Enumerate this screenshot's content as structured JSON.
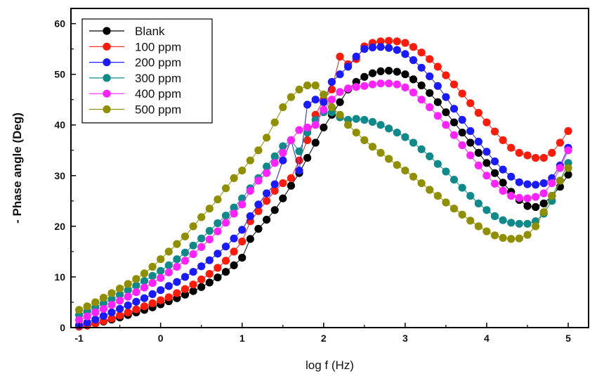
{
  "chart_data": {
    "type": "scatter",
    "xlabel": "log f (Hz)",
    "ylabel": "- Phase angle (Deg)",
    "xlim": [
      -1.1,
      5.25
    ],
    "ylim": [
      0,
      63
    ],
    "x_ticks": [
      "-1",
      "0",
      "1",
      "2",
      "3",
      "4",
      "5"
    ],
    "y_ticks": [
      "0",
      "10",
      "20",
      "30",
      "40",
      "50",
      "60"
    ],
    "legend_position": "top-left",
    "grid": false,
    "series": [
      {
        "name": "Blank",
        "color": "#000000",
        "x": [
          -1.0,
          -0.9,
          -0.8,
          -0.7,
          -0.6,
          -0.5,
          -0.4,
          -0.3,
          -0.2,
          -0.1,
          0.0,
          0.1,
          0.2,
          0.3,
          0.4,
          0.5,
          0.6,
          0.7,
          0.8,
          0.9,
          1.0,
          1.1,
          1.2,
          1.3,
          1.4,
          1.5,
          1.6,
          1.7,
          1.8,
          1.9,
          2.0,
          2.1,
          2.2,
          2.3,
          2.4,
          2.5,
          2.6,
          2.7,
          2.8,
          2.9,
          3.0,
          3.1,
          3.2,
          3.3,
          3.4,
          3.5,
          3.6,
          3.7,
          3.8,
          3.9,
          4.0,
          4.1,
          4.2,
          4.3,
          4.4,
          4.5,
          4.6,
          4.7,
          4.8,
          4.9,
          5.0
        ],
        "y": [
          0.2,
          0.4,
          0.8,
          1.2,
          1.6,
          2.0,
          2.5,
          3.0,
          3.5,
          4.0,
          4.6,
          5.2,
          5.8,
          6.5,
          7.2,
          8.0,
          8.9,
          9.9,
          11.0,
          12.3,
          13.8,
          17.5,
          19.5,
          21.3,
          23.2,
          25.5,
          28.0,
          30.5,
          33.5,
          36.5,
          39.5,
          42.0,
          44.5,
          47.0,
          48.5,
          49.5,
          50.2,
          50.6,
          50.7,
          50.5,
          50.0,
          49.0,
          47.8,
          46.3,
          44.5,
          42.5,
          40.5,
          38.5,
          36.5,
          34.5,
          32.5,
          30.5,
          28.6,
          26.8,
          25.2,
          24.0,
          23.8,
          24.5,
          26.0,
          27.8,
          30.2
        ]
      },
      {
        "name": "100 ppm",
        "color": "#ff1a0a",
        "x": [
          -1.0,
          -0.9,
          -0.8,
          -0.7,
          -0.6,
          -0.5,
          -0.4,
          -0.3,
          -0.2,
          -0.1,
          0.0,
          0.1,
          0.2,
          0.3,
          0.4,
          0.5,
          0.6,
          0.7,
          0.8,
          0.9,
          1.0,
          1.1,
          1.2,
          1.3,
          1.4,
          1.5,
          1.6,
          1.7,
          1.8,
          1.9,
          2.0,
          2.1,
          2.2,
          2.3,
          2.4,
          2.5,
          2.6,
          2.7,
          2.8,
          2.9,
          3.0,
          3.1,
          3.2,
          3.3,
          3.4,
          3.5,
          3.6,
          3.7,
          3.8,
          3.9,
          4.0,
          4.1,
          4.2,
          4.3,
          4.4,
          4.5,
          4.6,
          4.7,
          4.8,
          4.9,
          5.0
        ],
        "y": [
          0.2,
          0.4,
          0.8,
          1.3,
          1.8,
          2.4,
          3.0,
          3.6,
          4.2,
          4.8,
          5.4,
          6.0,
          6.8,
          7.6,
          8.5,
          9.5,
          10.6,
          11.8,
          13.2,
          15.0,
          17.0,
          21.0,
          23.0,
          25.0,
          27.0,
          28.5,
          29.5,
          33.0,
          37.0,
          42.0,
          45.0,
          47.0,
          53.5,
          52.0,
          53.0,
          55.5,
          56.2,
          56.5,
          56.6,
          56.5,
          56.2,
          55.4,
          54.3,
          53.0,
          51.5,
          49.8,
          48.0,
          46.2,
          44.3,
          42.4,
          40.5,
          38.7,
          37.0,
          35.5,
          34.5,
          34.0,
          33.5,
          33.5,
          34.5,
          36.5,
          38.8
        ]
      },
      {
        "name": "200 ppm",
        "color": "#1a1aff",
        "x": [
          -1.0,
          -0.9,
          -0.8,
          -0.7,
          -0.6,
          -0.5,
          -0.4,
          -0.3,
          -0.2,
          -0.1,
          0.0,
          0.1,
          0.2,
          0.3,
          0.4,
          0.5,
          0.6,
          0.7,
          0.8,
          0.9,
          1.0,
          1.1,
          1.2,
          1.3,
          1.4,
          1.5,
          1.6,
          1.7,
          1.8,
          1.9,
          2.0,
          2.1,
          2.2,
          2.3,
          2.4,
          2.5,
          2.6,
          2.7,
          2.8,
          2.9,
          3.0,
          3.1,
          3.2,
          3.3,
          3.4,
          3.5,
          3.6,
          3.7,
          3.8,
          3.9,
          4.0,
          4.1,
          4.2,
          4.3,
          4.4,
          4.5,
          4.6,
          4.7,
          4.8,
          4.9,
          5.0
        ],
        "y": [
          0.5,
          1.0,
          1.6,
          2.3,
          3.0,
          3.7,
          4.4,
          5.1,
          5.8,
          6.6,
          7.4,
          8.2,
          9.0,
          10.0,
          11.0,
          12.1,
          13.3,
          14.6,
          16.0,
          17.6,
          19.3,
          22.0,
          24.3,
          26.5,
          28.3,
          33.0,
          37.0,
          31.0,
          44.0,
          45.0,
          44.5,
          48.5,
          50.0,
          51.5,
          53.5,
          55.0,
          55.3,
          55.4,
          55.2,
          54.8,
          54.0,
          52.8,
          51.3,
          49.6,
          47.7,
          45.5,
          43.2,
          41.0,
          38.8,
          36.7,
          34.7,
          32.8,
          31.2,
          29.8,
          28.7,
          28.3,
          28.2,
          28.5,
          29.5,
          32.0,
          35.5
        ]
      },
      {
        "name": "300 ppm",
        "color": "#0e8a8a",
        "x": [
          -1.0,
          -0.9,
          -0.8,
          -0.7,
          -0.6,
          -0.5,
          -0.4,
          -0.3,
          -0.2,
          -0.1,
          0.0,
          0.1,
          0.2,
          0.3,
          0.4,
          0.5,
          0.6,
          0.7,
          0.8,
          0.9,
          1.0,
          1.1,
          1.2,
          1.3,
          1.4,
          1.5,
          1.6,
          1.7,
          1.8,
          1.9,
          2.0,
          2.1,
          2.2,
          2.3,
          2.4,
          2.5,
          2.6,
          2.7,
          2.8,
          2.9,
          3.0,
          3.1,
          3.2,
          3.3,
          3.4,
          3.5,
          3.6,
          3.7,
          3.8,
          3.9,
          4.0,
          4.1,
          4.2,
          4.3,
          4.4,
          4.5,
          4.6,
          4.7,
          4.8,
          4.9,
          5.0
        ],
        "y": [
          2.5,
          3.2,
          4.0,
          4.8,
          5.6,
          6.5,
          7.4,
          8.3,
          9.2,
          10.2,
          11.2,
          12.3,
          13.5,
          14.8,
          16.2,
          17.6,
          19.1,
          20.6,
          22.1,
          23.7,
          25.5,
          27.5,
          29.5,
          31.8,
          33.8,
          35.8,
          37.0,
          34.8,
          38.5,
          41.0,
          42.5,
          42.5,
          41.5,
          41.0,
          41.2,
          41.0,
          40.6,
          40.0,
          39.3,
          38.5,
          37.6,
          36.5,
          35.2,
          33.8,
          32.3,
          30.8,
          29.2,
          27.6,
          26.0,
          24.5,
          23.2,
          22.0,
          21.2,
          20.7,
          20.5,
          20.5,
          21.0,
          22.5,
          25.0,
          29.0,
          32.5
        ]
      },
      {
        "name": "400 ppm",
        "color": "#ff22ff",
        "x": [
          -1.0,
          -0.9,
          -0.8,
          -0.7,
          -0.6,
          -0.5,
          -0.4,
          -0.3,
          -0.2,
          -0.1,
          0.0,
          0.1,
          0.2,
          0.3,
          0.4,
          0.5,
          0.6,
          0.7,
          0.8,
          0.9,
          1.0,
          1.1,
          1.2,
          1.3,
          1.4,
          1.5,
          1.6,
          1.7,
          1.8,
          1.9,
          2.0,
          2.1,
          2.2,
          2.3,
          2.4,
          2.5,
          2.6,
          2.7,
          2.8,
          2.9,
          3.0,
          3.1,
          3.2,
          3.3,
          3.4,
          3.5,
          3.6,
          3.7,
          3.8,
          3.9,
          4.0,
          4.1,
          4.2,
          4.3,
          4.4,
          4.5,
          4.6,
          4.7,
          4.8,
          4.9,
          5.0
        ],
        "y": [
          1.5,
          2.2,
          3.0,
          3.7,
          4.5,
          5.3,
          6.1,
          7.0,
          7.9,
          8.8,
          9.8,
          10.9,
          12.0,
          13.2,
          14.5,
          15.9,
          17.4,
          19.0,
          20.7,
          22.5,
          24.3,
          27.0,
          29.0,
          30.5,
          32.5,
          34.5,
          37.0,
          39.0,
          39.5,
          40.0,
          43.0,
          45.0,
          46.5,
          47.2,
          47.5,
          47.7,
          48.0,
          48.2,
          48.2,
          48.0,
          47.4,
          46.4,
          45.0,
          43.5,
          41.8,
          40.0,
          38.0,
          36.0,
          34.0,
          32.0,
          30.0,
          28.4,
          27.0,
          26.0,
          25.6,
          25.5,
          25.8,
          26.5,
          28.5,
          31.5,
          35.0
        ]
      },
      {
        "name": "500 ppm",
        "color": "#8f8f00",
        "x": [
          -1.0,
          -0.9,
          -0.8,
          -0.7,
          -0.6,
          -0.5,
          -0.4,
          -0.3,
          -0.2,
          -0.1,
          0.0,
          0.1,
          0.2,
          0.3,
          0.4,
          0.5,
          0.6,
          0.7,
          0.8,
          0.9,
          1.0,
          1.1,
          1.2,
          1.3,
          1.4,
          1.5,
          1.6,
          1.7,
          1.8,
          1.9,
          2.0,
          2.1,
          2.2,
          2.3,
          2.4,
          2.5,
          2.6,
          2.7,
          2.8,
          2.9,
          3.0,
          3.1,
          3.2,
          3.3,
          3.4,
          3.5,
          3.6,
          3.7,
          3.8,
          3.9,
          4.0,
          4.1,
          4.2,
          4.3,
          4.4,
          4.5,
          4.6,
          4.7,
          4.8,
          4.9,
          5.0
        ],
        "y": [
          3.5,
          4.2,
          5.0,
          5.9,
          6.8,
          7.7,
          8.6,
          9.6,
          10.7,
          12.0,
          13.5,
          15.0,
          16.5,
          18.0,
          20.0,
          21.8,
          23.5,
          25.3,
          27.5,
          29.5,
          31.0,
          33.0,
          35.0,
          37.5,
          40.5,
          43.5,
          45.5,
          47.0,
          47.8,
          47.8,
          46.0,
          43.5,
          42.0,
          40.0,
          38.5,
          37.0,
          35.7,
          34.5,
          33.3,
          32.1,
          31.0,
          29.8,
          28.5,
          27.2,
          26.0,
          24.7,
          23.5,
          22.3,
          21.1,
          20.0,
          19.0,
          18.2,
          17.7,
          17.5,
          17.6,
          18.3,
          20.0,
          22.8,
          26.0,
          29.0,
          31.5
        ]
      }
    ]
  }
}
